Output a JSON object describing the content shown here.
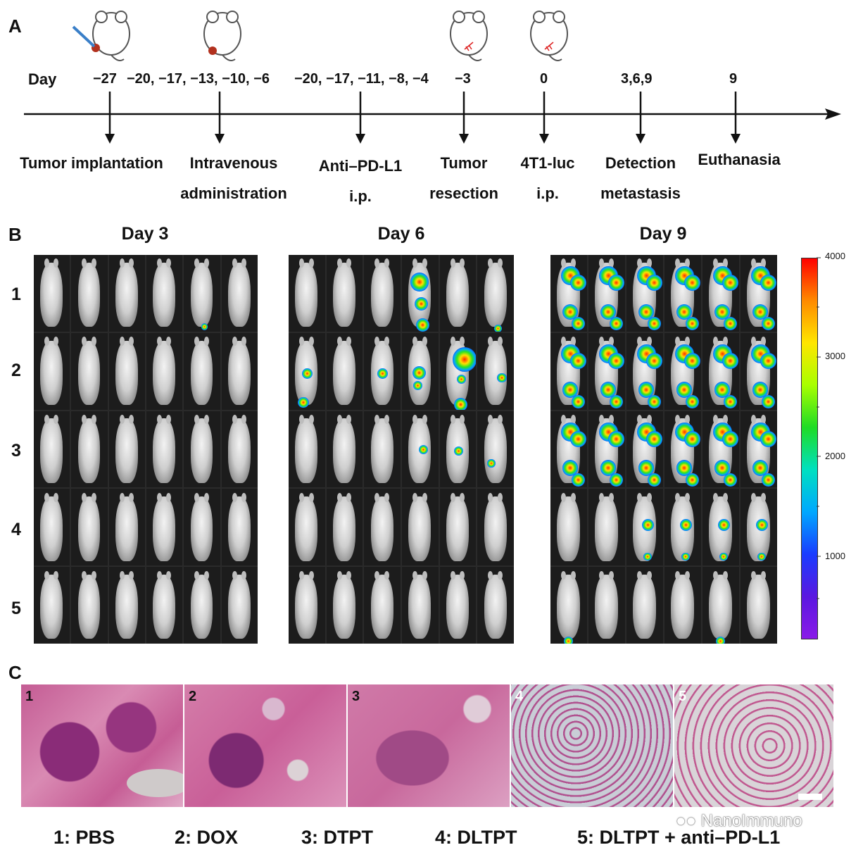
{
  "panel_a": {
    "letter": "A",
    "day_label": "Day",
    "days": [
      "−27",
      "−20, −17, −13, −10, −6",
      "−20, −17, −11, −8, −4",
      "−3",
      "0",
      "3,6,9",
      "9"
    ],
    "events": [
      {
        "line1": "Tumor implantation",
        "line2": ""
      },
      {
        "line1": "Intravenous",
        "line2": "administration"
      },
      {
        "line1": "Anti–PD-L1",
        "line2": "i.p."
      },
      {
        "line1": "Tumor",
        "line2": "resection"
      },
      {
        "line1": "4T1-luc",
        "line2": "i.p."
      },
      {
        "line1": "Detection",
        "line2": "metastasis"
      },
      {
        "line1": "Euthanasia",
        "line2": ""
      }
    ]
  },
  "panel_b": {
    "letter": "B",
    "day_titles": [
      "Day 3",
      "Day 6",
      "Day 9"
    ],
    "rows": [
      "1",
      "2",
      "3",
      "4",
      "5"
    ],
    "colorbar": {
      "ticks": [
        "4000",
        "3000",
        "2000",
        "1000"
      ],
      "colors": [
        "#ff0000",
        "#ff8a00",
        "#ffe600",
        "#a8ff00",
        "#1fdc25",
        "#00e0c0",
        "#00a8ff",
        "#1a3cff",
        "#5a18e0",
        "#8a1ae8"
      ]
    }
  },
  "panel_c": {
    "letter": "C",
    "image_numbers": [
      "1",
      "2",
      "3",
      "4",
      "5"
    ]
  },
  "legend": [
    "1: PBS",
    "2: DOX",
    "3: DTPT",
    "4: DLTPT",
    "5: DLTPT + anti–PD-L1"
  ],
  "watermark": "NanoImmuno"
}
